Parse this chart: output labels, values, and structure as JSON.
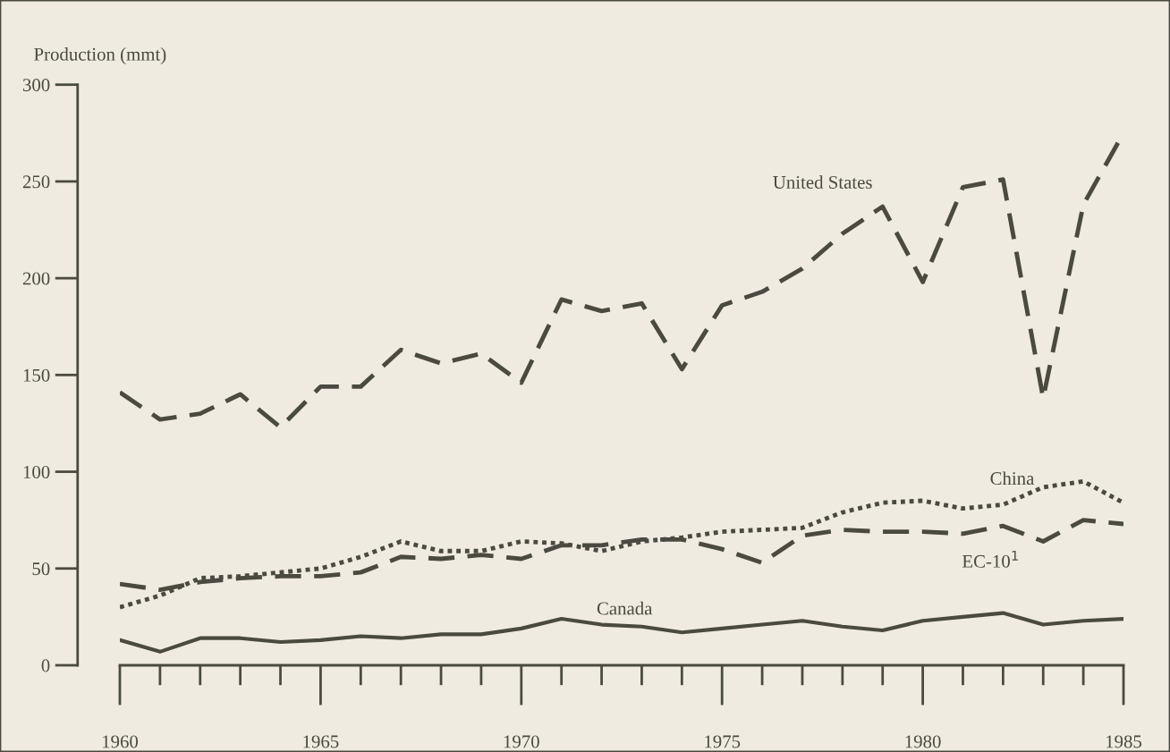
{
  "chart_data": {
    "type": "line",
    "ylabel": "Production (mmt)",
    "x": [
      1960,
      1961,
      1962,
      1963,
      1964,
      1965,
      1966,
      1967,
      1968,
      1969,
      1970,
      1971,
      1972,
      1973,
      1974,
      1975,
      1976,
      1977,
      1978,
      1979,
      1980,
      1981,
      1982,
      1983,
      1984,
      1985
    ],
    "series": [
      {
        "name": "United States",
        "color": "#4a4a40",
        "line_style": "dashed",
        "values": [
          141,
          127,
          130,
          140,
          123,
          144,
          144,
          163,
          156,
          161,
          146,
          189,
          183,
          187,
          153,
          186,
          193,
          205,
          223,
          237,
          198,
          247,
          251,
          138,
          238,
          275
        ]
      },
      {
        "name": "China",
        "color": "#4a4a40",
        "line_style": "dotted",
        "values": [
          30,
          36,
          45,
          46,
          48,
          50,
          56,
          64,
          59,
          59,
          64,
          63,
          59,
          64,
          66,
          69,
          70,
          71,
          79,
          84,
          85,
          81,
          83,
          92,
          95,
          84
        ]
      },
      {
        "name": "EC-10$^{1}$",
        "color": "#4a4a40",
        "line_style": "dashed",
        "values": [
          42,
          39,
          43,
          45,
          46,
          46,
          48,
          56,
          55,
          57,
          55,
          62,
          62,
          65,
          65,
          60,
          53,
          67,
          70,
          69,
          69,
          68,
          72,
          64,
          75,
          73
        ]
      },
      {
        "name": "Canada",
        "color": "#4a4a40",
        "line_style": "solid",
        "values": [
          13,
          7,
          14,
          14,
          12,
          13,
          15,
          14,
          16,
          16,
          19,
          24,
          21,
          20,
          17,
          19,
          21,
          23,
          20,
          18,
          23,
          25,
          27,
          21,
          23,
          24
        ]
      }
    ],
    "xlim": [
      1960,
      1985
    ],
    "ylim": [
      0,
      300
    ],
    "xticks": [
      1960,
      1965,
      1970,
      1975,
      1980,
      1985
    ],
    "yticks": [
      0,
      50,
      100,
      150,
      200,
      250,
      300
    ],
    "grid": false,
    "legend": false,
    "marker": "none"
  }
}
